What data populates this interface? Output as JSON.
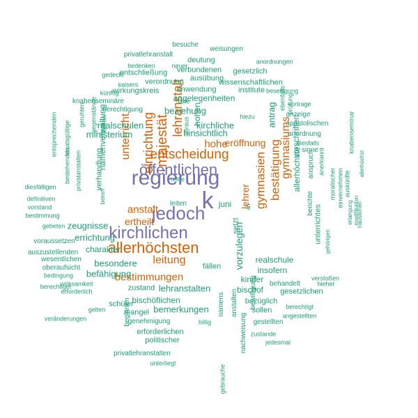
{
  "colors": {
    "purple": "#7570b3",
    "orange": "#d95f02",
    "teal": "#1b9e77"
  },
  "words": [
    {
      "text": "regierung",
      "color": "purple"
    },
    {
      "text": "k",
      "color": "purple"
    },
    {
      "text": "öffentlichen",
      "color": "purple"
    },
    {
      "text": "jedoch",
      "color": "purple"
    },
    {
      "text": "kirchlichen",
      "color": "purple"
    },
    {
      "text": "allerhöchsten",
      "color": "orange"
    },
    {
      "text": "majestät",
      "color": "orange"
    },
    {
      "text": "entscheidung",
      "color": "orange"
    },
    {
      "text": "einrichtung",
      "color": "orange"
    },
    {
      "text": "lehranstalt",
      "color": "orange"
    },
    {
      "text": "unterricht",
      "color": "orange"
    },
    {
      "text": "gymnasien",
      "color": "orange"
    },
    {
      "text": "bestätigung",
      "color": "orange"
    },
    {
      "text": "gymnasiums",
      "color": "orange"
    },
    {
      "text": "hohe",
      "color": "orange"
    },
    {
      "text": "anstalt",
      "color": "orange"
    },
    {
      "text": "ertheilt",
      "color": "orange"
    },
    {
      "text": "leitung",
      "color": "orange"
    },
    {
      "text": "bestimmungen",
      "color": "orange"
    },
    {
      "text": "eröffnung",
      "color": "orange"
    },
    {
      "text": "lehrer",
      "color": "orange"
    },
    {
      "text": "besuche",
      "color": "teal"
    },
    {
      "text": "weisungen",
      "color": "teal"
    },
    {
      "text": "privatlehranstalt",
      "color": "teal"
    },
    {
      "text": "anordnungen",
      "color": "teal"
    },
    {
      "text": "bedenken",
      "color": "teal"
    },
    {
      "text": "neuer",
      "color": "teal"
    },
    {
      "text": "deutung",
      "color": "teal"
    },
    {
      "text": "verbundenen",
      "color": "teal"
    },
    {
      "text": "gesetzlich",
      "color": "teal"
    },
    {
      "text": "gedeckt",
      "color": "teal"
    },
    {
      "text": "entschließung",
      "color": "teal"
    },
    {
      "text": "ausübung",
      "color": "teal"
    },
    {
      "text": "kaisers",
      "color": "teal"
    },
    {
      "text": "verordnung",
      "color": "teal"
    },
    {
      "text": "wissenschaftlichen",
      "color": "teal"
    },
    {
      "text": "künftig",
      "color": "teal"
    },
    {
      "text": "wirkungskreis",
      "color": "teal"
    },
    {
      "text": "anwendung",
      "color": "teal"
    },
    {
      "text": "institute",
      "color": "teal"
    },
    {
      "text": "beseitigung",
      "color": "teal"
    },
    {
      "text": "knabenseminäre",
      "color": "teal"
    },
    {
      "text": "tiefe",
      "color": "teal"
    },
    {
      "text": "angelegenheiten",
      "color": "teal"
    },
    {
      "text": "berechtigung",
      "color": "teal"
    },
    {
      "text": "beziehung",
      "color": "teal"
    },
    {
      "text": "vortrage",
      "color": "teal"
    },
    {
      "text": "ebenfalls",
      "color": "teal"
    },
    {
      "text": "prüfung",
      "color": "teal"
    },
    {
      "text": "hiezu",
      "color": "teal"
    },
    {
      "text": "anzeige",
      "color": "teal"
    },
    {
      "text": "kirchliche",
      "color": "teal"
    },
    {
      "text": "apostolischen",
      "color": "teal"
    },
    {
      "text": "realschulen",
      "color": "teal"
    },
    {
      "text": "hohen",
      "color": "teal"
    },
    {
      "text": "hinsichtlich",
      "color": "teal"
    },
    {
      "text": "antrag",
      "color": "teal"
    },
    {
      "text": "ministerium",
      "color": "teal"
    },
    {
      "text": "anordnung",
      "color": "teal"
    },
    {
      "text": "diesfalls",
      "color": "teal"
    },
    {
      "text": "vorschriften",
      "color": "teal"
    },
    {
      "text": "sinne",
      "color": "teal"
    },
    {
      "text": "entsprechenden",
      "color": "teal"
    },
    {
      "text": "staatsgültige",
      "color": "teal"
    },
    {
      "text": "geruhten",
      "color": "teal"
    },
    {
      "text": "gegenstände",
      "color": "teal"
    },
    {
      "text": "führen",
      "color": "teal"
    },
    {
      "text": "voraus",
      "color": "teal"
    },
    {
      "text": "knabenseminar",
      "color": "teal"
    },
    {
      "text": "allerhöchst",
      "color": "teal"
    },
    {
      "text": "anspruch",
      "color": "teal"
    },
    {
      "text": "anerkannt",
      "color": "teal"
    },
    {
      "text": "namenverwaltung",
      "color": "teal"
    },
    {
      "text": "reihe",
      "color": "teal"
    },
    {
      "text": "privatanstalten",
      "color": "teal"
    },
    {
      "text": "bestehenden",
      "color": "teal"
    },
    {
      "text": "diesfälligen",
      "color": "teal"
    },
    {
      "text": "verhandlung",
      "color": "teal"
    },
    {
      "text": "definitiven",
      "color": "teal"
    },
    {
      "text": "betreff",
      "color": "teal"
    },
    {
      "text": "leiten",
      "color": "teal"
    },
    {
      "text": "juni",
      "color": "teal"
    },
    {
      "text": "art",
      "color": "teal"
    },
    {
      "text": "allerhöchste",
      "color": "teal"
    },
    {
      "text": "berichte",
      "color": "teal"
    },
    {
      "text": "moralischer",
      "color": "teal"
    },
    {
      "text": "einvernehmen",
      "color": "teal"
    },
    {
      "text": "auskünfte",
      "color": "teal"
    },
    {
      "text": "vorstand",
      "color": "teal"
    },
    {
      "text": "bestimmung",
      "color": "teal"
    },
    {
      "text": "gebeten",
      "color": "teal"
    },
    {
      "text": "zeugnisse",
      "color": "teal"
    },
    {
      "text": "setzt",
      "color": "teal"
    },
    {
      "text": "unterrichtes",
      "color": "teal"
    },
    {
      "text": "gehörigen",
      "color": "teal"
    },
    {
      "text": "erlangung",
      "color": "teal"
    },
    {
      "text": "modifikation",
      "color": "teal"
    },
    {
      "text": "häuslichen",
      "color": "teal"
    },
    {
      "text": "voraussetzen",
      "color": "teal"
    },
    {
      "text": "errichtung",
      "color": "teal"
    },
    {
      "text": "auszustellenden",
      "color": "teal"
    },
    {
      "text": "charakter",
      "color": "teal"
    },
    {
      "text": "realschule",
      "color": "teal"
    },
    {
      "text": "wesentlichen",
      "color": "teal"
    },
    {
      "text": "oberaufsicht",
      "color": "teal"
    },
    {
      "text": "besondere",
      "color": "teal"
    },
    {
      "text": "insofern",
      "color": "teal"
    },
    {
      "text": "bedingung",
      "color": "teal"
    },
    {
      "text": "befähigung",
      "color": "teal"
    },
    {
      "text": "fällen",
      "color": "teal"
    },
    {
      "text": "kinder",
      "color": "teal"
    },
    {
      "text": "vorzulegen",
      "color": "teal"
    },
    {
      "text": "verstoßen",
      "color": "teal"
    },
    {
      "text": "wirksamkeit",
      "color": "teal"
    },
    {
      "text": "behandelt",
      "color": "teal"
    },
    {
      "text": "hieher",
      "color": "teal"
    },
    {
      "text": "berechtiget",
      "color": "teal"
    },
    {
      "text": "erforderlich",
      "color": "teal"
    },
    {
      "text": "zustand",
      "color": "teal"
    },
    {
      "text": "lehranstalten",
      "color": "teal"
    },
    {
      "text": "bischof",
      "color": "teal"
    },
    {
      "text": "gesetzlichen",
      "color": "teal"
    },
    {
      "text": "gelten",
      "color": "teal"
    },
    {
      "text": "schüler",
      "color": "teal"
    },
    {
      "text": "bischöflichen",
      "color": "teal"
    },
    {
      "text": "bezüglich",
      "color": "teal"
    },
    {
      "text": "berechtigt",
      "color": "teal"
    },
    {
      "text": "veränderungen",
      "color": "teal"
    },
    {
      "text": "mangel",
      "color": "teal"
    },
    {
      "text": "bemerkungen",
      "color": "teal"
    },
    {
      "text": "sollen",
      "color": "teal"
    },
    {
      "text": "angestellten",
      "color": "teal"
    },
    {
      "text": "beginnen",
      "color": "teal"
    },
    {
      "text": "genehmigung",
      "color": "teal"
    },
    {
      "text": "billig",
      "color": "teal"
    },
    {
      "text": "gestellten",
      "color": "teal"
    },
    {
      "text": "bewilligung",
      "color": "teal"
    },
    {
      "text": "erforderlichen",
      "color": "teal"
    },
    {
      "text": "zustande",
      "color": "teal"
    },
    {
      "text": "politischer",
      "color": "teal"
    },
    {
      "text": "jedesmal",
      "color": "teal"
    },
    {
      "text": "privatlehranstalten",
      "color": "teal"
    },
    {
      "text": "unterliegt",
      "color": "teal"
    },
    {
      "text": "namens",
      "color": "teal"
    },
    {
      "text": "anstalten",
      "color": "teal"
    },
    {
      "text": "nachweisung",
      "color": "teal"
    },
    {
      "text": "gebrauche",
      "color": "teal"
    }
  ]
}
